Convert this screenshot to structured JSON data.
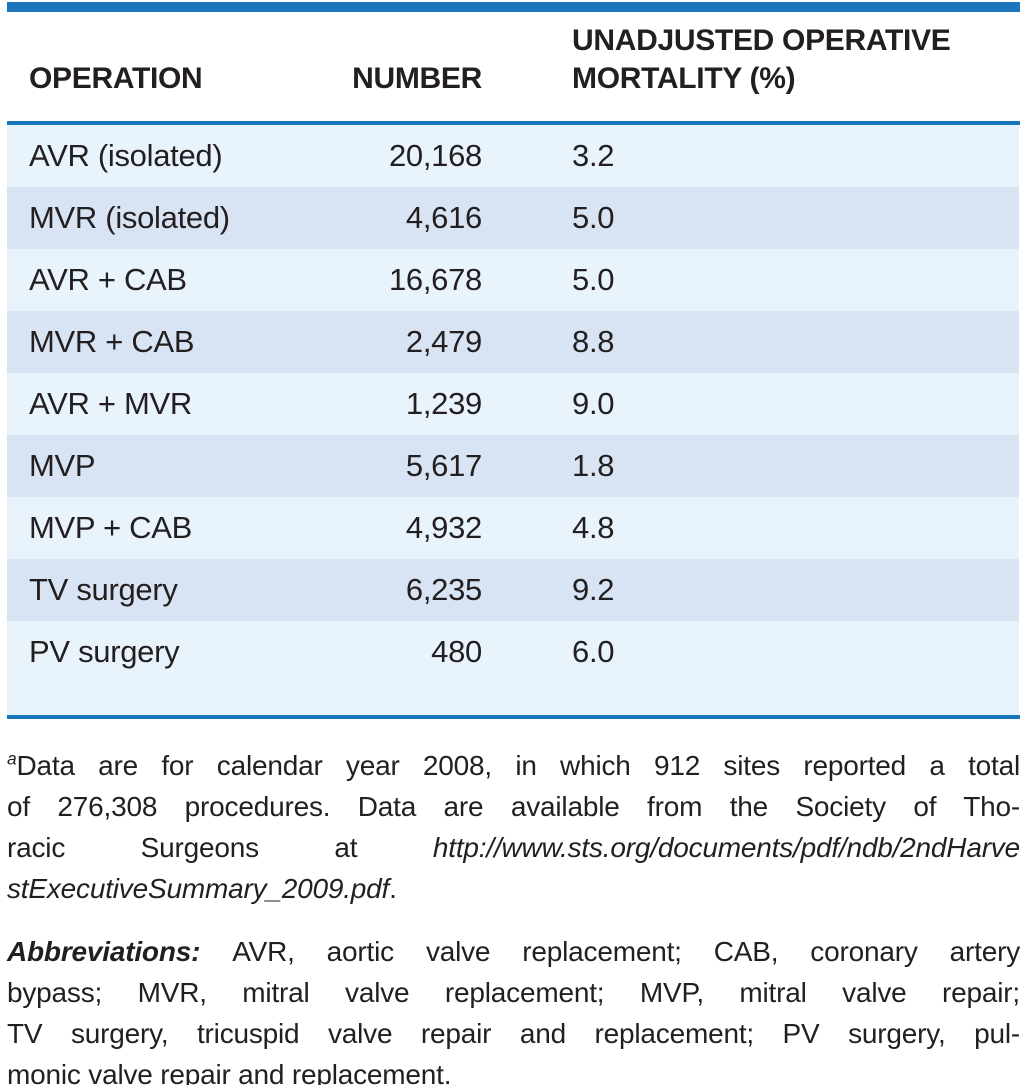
{
  "colors": {
    "brand_blue": "#1b76bc",
    "row_light": "#e8f3fc",
    "row_dark": "#d8e4f3",
    "text": "#231f20"
  },
  "table": {
    "columns": {
      "operation_label": "OPERATION",
      "number_label": "NUMBER",
      "mortality_label_line1": "UNADJUSTED OPERATIVE",
      "mortality_label_line2": "MORTALITY (%)"
    },
    "rows": [
      {
        "operation": "AVR (isolated)",
        "number": "20,168",
        "mortality": "3.2"
      },
      {
        "operation": "MVR (isolated)",
        "number": "4,616",
        "mortality": "5.0"
      },
      {
        "operation": "AVR + CAB",
        "number": "16,678",
        "mortality": "5.0"
      },
      {
        "operation": "MVR + CAB",
        "number": "2,479",
        "mortality": "8.8"
      },
      {
        "operation": "AVR + MVR",
        "number": "1,239",
        "mortality": "9.0"
      },
      {
        "operation": "MVP",
        "number": "5,617",
        "mortality": "1.8"
      },
      {
        "operation": "MVP + CAB",
        "number": "4,932",
        "mortality": "4.8"
      },
      {
        "operation": "TV surgery",
        "number": "6,235",
        "mortality": "9.2"
      },
      {
        "operation": "PV surgery",
        "number": "480",
        "mortality": "6.0"
      }
    ]
  },
  "footnote": {
    "marker": "a",
    "line1_text": "Data are for calendar year 2008, in which 912 sites reported a total",
    "line2_text": "of 276,308 procedures. Data are available from the Society of Tho-",
    "line3_text": "racic Surgeons at ",
    "line3_url": "http://www.sts.org/documents/pdf/ndb/2ndHarve",
    "line4_url": "stExecutiveSummary_2009.pdf",
    "line4_period": "."
  },
  "abbreviations": {
    "label": "Abbreviations: ",
    "line1_text": "AVR, aortic valve replacement; CAB, coronary artery",
    "line2_text": "bypass; MVR, mitral valve replacement; MVP, mitral valve repair;",
    "line3_text": "TV surgery, tricuspid valve repair and replacement; PV surgery, pul-",
    "line4_text": "monic valve repair and replacement."
  }
}
